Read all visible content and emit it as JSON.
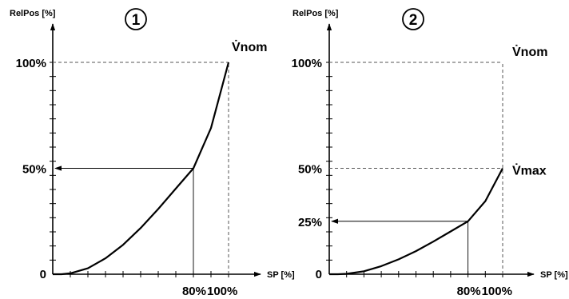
{
  "chart_data": [
    {
      "type": "line",
      "panel_label": "1",
      "xlabel": "SP [%]",
      "ylabel": "RelPos [%]",
      "xlim": [
        0,
        100
      ],
      "ylim": [
        0,
        100
      ],
      "x_tick_labels": [
        "80%",
        "100%"
      ],
      "y_tick_labels": [
        "0",
        "50%",
        "100%"
      ],
      "curve_label": "V̇nom",
      "curve_end_y": 100,
      "series": [
        {
          "x": [
            0,
            5,
            10,
            20,
            30,
            40,
            50,
            60,
            70,
            80,
            90,
            100
          ],
          "y": [
            0,
            0,
            0.4,
            2.8,
            7.5,
            13.9,
            21.8,
            30.8,
            40.4,
            50,
            69,
            100
          ]
        }
      ],
      "reference": {
        "x": 80,
        "y": 50
      }
    },
    {
      "type": "line",
      "panel_label": "2",
      "xlabel": "SP [%]",
      "ylabel": "RelPos [%]",
      "xlim": [
        0,
        100
      ],
      "ylim": [
        0,
        100
      ],
      "x_tick_labels": [
        "80%",
        "100%"
      ],
      "y_tick_labels": [
        "0",
        "25%",
        "50%",
        "100%"
      ],
      "curve_label": "V̇max",
      "dashed_top_label": "V̇nom",
      "curve_end_y": 50,
      "series": [
        {
          "x": [
            0,
            5,
            10,
            20,
            30,
            40,
            50,
            60,
            70,
            80,
            90,
            100
          ],
          "y": [
            0,
            0,
            0.2,
            1.4,
            3.8,
            7,
            10.9,
            15.4,
            20.2,
            25,
            34.5,
            50
          ]
        }
      ],
      "reference": {
        "x": 80,
        "y": 25
      }
    }
  ]
}
